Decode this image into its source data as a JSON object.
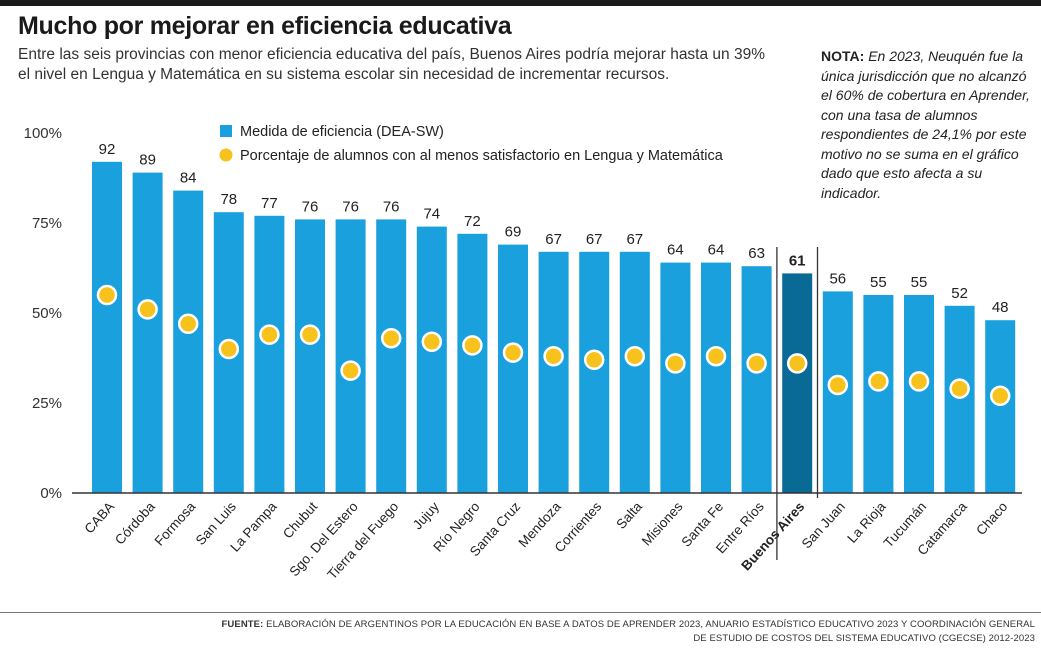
{
  "header": {
    "title": "Mucho por mejorar en eficiencia educativa",
    "subtitle": "Entre las seis provincias con menor eficiencia educativa del país, Buenos Aires podría mejorar hasta un 39% el nivel en Lengua y Matemática en su sistema escolar sin necesidad de incrementar recursos."
  },
  "note": {
    "label": "NOTA:",
    "text": "En 2023, Neuquén fue la única jurisdicción que no alcanzó el 60% de cobertura en Aprender, con una tasa de alumnos respondientes de 24,1% por este motivo no se suma en el gráfico dado que esto afecta a su indicador."
  },
  "footer": {
    "source_label": "FUENTE:",
    "source_text": "ELABORACIÓN DE ARGENTINOS POR LA EDUCACIÓN EN BASE A DATOS DE APRENDER 2023, ANUARIO ESTADÍSTICO EDUCATIVO 2023 Y COORDINACIÓN GENERAL DE ESTUDIO DE COSTOS DEL SISTEMA EDUCATIVO (CGECSE) 2012-2023"
  },
  "colors": {
    "bar": "#1aa1dd",
    "bar_highlight": "#0a6a96",
    "dot": "#f6c21b",
    "dot_stroke": "#ffffff",
    "axis": "#333333"
  },
  "chart_data": {
    "type": "bar",
    "categories": [
      "CABA",
      "Córdoba",
      "Formosa",
      "San Luis",
      "La Pampa",
      "Chubut",
      "Sgo. Del Estero",
      "Tierra del Fuego",
      "Jujuy",
      "Río Negro",
      "Santa Cruz",
      "Mendoza",
      "Corrientes",
      "Salta",
      "Misiones",
      "Santa Fe",
      "Entre Ríos",
      "Buenos Aires",
      "San Juan",
      "La Rioja",
      "Tucumán",
      "Catamarca",
      "Chaco"
    ],
    "highlight": "Buenos Aires",
    "series": [
      {
        "name": "Medida de eficiencia (DEA-SW)",
        "kind": "bar",
        "values": [
          92,
          89,
          84,
          78,
          77,
          76,
          76,
          76,
          74,
          72,
          69,
          67,
          67,
          67,
          64,
          64,
          63,
          61,
          56,
          55,
          55,
          52,
          48
        ]
      },
      {
        "name": "Porcentaje de alumnos con al menos satisfactorio en Lengua y Matemática",
        "kind": "dot",
        "values": [
          55,
          51,
          47,
          40,
          44,
          44,
          34,
          43,
          42,
          41,
          39,
          38,
          37,
          38,
          36,
          38,
          36,
          36,
          30,
          31,
          31,
          29,
          27
        ]
      }
    ],
    "yticks": [
      "0%",
      "25%",
      "50%",
      "75%",
      "100%"
    ],
    "ylim": [
      0,
      100
    ],
    "legend_position": "top-left",
    "grid": false
  }
}
